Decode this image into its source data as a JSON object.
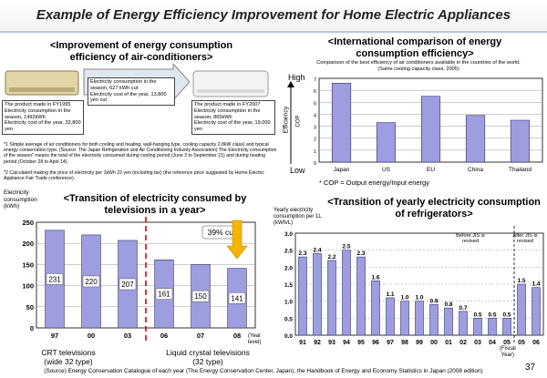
{
  "page": {
    "title": "Example of Energy Efficiency Improvement for Home Electric Appliances",
    "page_number": "37",
    "source": "(Source) Energy Conservation Catalogue of each year (The Energy Conservation Center, Japan), the Handbook of Energy and Economy Statistics in Japan (2008 edition)"
  },
  "aircon_panel": {
    "heading": "<Improvement of energy consumption efficiency of air-conditioners>",
    "old_product": "The product made in FY1995\nElectricity consumption in the season, 1492kWh\nElectricity cost of the year, 32,800 yen",
    "new_product": "The product made in FY2007\nElectricity consumption in the season, 865kWh\nElectricity cost of the year, 19,000 yen",
    "savings": "Electricity consumption in the season, 627 kWh cut\nElectricity cost of the year, 13,800 yen cut",
    "footnote1": "*1 Simple average of air conditioners for both cooling and heating, wall-hanging type, cooling capacity 2.8kW class) and typical energy conservation type. (Source: The Japan Refrigeration and Air Conditioning Industry Association) The Electricity consumption of the season\" means the total of the electricity consumed during cooling period (June 2 to September 21) and during heating period (October 28 to April 14).",
    "footnote2": "*2 Calculated making the price of electricity per 1kWh 22 yen (including tax) (the reference price suggested by Home Electric Appliance Fair Trade conference)."
  },
  "intl_panel": {
    "heading": "<International comparison of energy consumption efficiency>",
    "subtitle": "Comparison of the best efficiency of air conditioners available in the countries of the world.",
    "subtitle2": "(Same cooling capacity class, 2005)",
    "high_label": "High",
    "low_label": "Low",
    "efficiency_label": "Efficiency",
    "cop_label": "COP",
    "cop_note": "* COP = Output energy/Input energy"
  },
  "tv_panel": {
    "heading": "<Transition of electricity consumed by televisions in a year>",
    "cut_label": "39% cut",
    "crt_label": "CRT televisions\n(wide 32 type)",
    "lcd_label": "Liquid crystal televisions\n(32 type)",
    "year_label": "(Year\nlevel)"
  },
  "fridge_panel": {
    "heading": "<Transition of yearly electricity consumption of refrigerators>",
    "before_label": "Before JIS is revised",
    "after_label": "After JIS is revised",
    "fiscal_label": "(Fiscal\nYear)"
  },
  "colors": {
    "bar_fill": "#9d9ddf",
    "bar_stroke": "#333366",
    "title_border": "#b5c7e7",
    "arrow": "#f5b400",
    "divider": "#e00000"
  },
  "chart_data": [
    {
      "type": "bar",
      "id": "intl",
      "categories": [
        "Japan",
        "US",
        "EU",
        "China",
        "Thailand"
      ],
      "values": [
        6.6,
        3.3,
        5.5,
        3.9,
        3.5
      ],
      "ylabel": "COP",
      "ylim": [
        0,
        7
      ],
      "yticks": [
        0,
        1,
        2,
        3,
        4,
        5,
        6,
        7
      ],
      "grid": true
    },
    {
      "type": "bar",
      "id": "tv",
      "categories": [
        "97",
        "00",
        "03",
        "06",
        "07",
        "08"
      ],
      "values": [
        231,
        220,
        207,
        161,
        150,
        141
      ],
      "ylabel": "Electricity consumption (kWh)",
      "ylim": [
        0,
        250
      ],
      "yticks": [
        0,
        50,
        100,
        150,
        200,
        250
      ],
      "grid": true
    },
    {
      "type": "bar",
      "id": "fridge",
      "categories": [
        "91",
        "92",
        "93",
        "94",
        "95",
        "96",
        "97",
        "98",
        "99",
        "00",
        "01",
        "02",
        "03",
        "04",
        "05",
        "05",
        "06"
      ],
      "values": [
        2.3,
        2.4,
        2.2,
        2.5,
        2.3,
        1.6,
        1.1,
        1.0,
        1.0,
        0.9,
        0.8,
        0.7,
        0.5,
        0.5,
        0.5,
        1.5,
        1.4
      ],
      "value_labels": [
        "2.3",
        "2.4",
        "2.2",
        "2.5",
        "2.3",
        "1.6",
        "1.1",
        "1.0",
        "1.0",
        "0.9",
        "0.8",
        "0.7",
        "0.5",
        "0.5",
        "0.5",
        "1.5",
        "1.4"
      ],
      "ylabel": "Yearly electricity consumption per 1L (kWh/L)",
      "ylim": [
        0,
        3.0
      ],
      "yticks": [
        "0.0",
        "0.5",
        "1.0",
        "1.5",
        "2.0",
        "2.5",
        "3.0"
      ],
      "grid": true
    }
  ]
}
